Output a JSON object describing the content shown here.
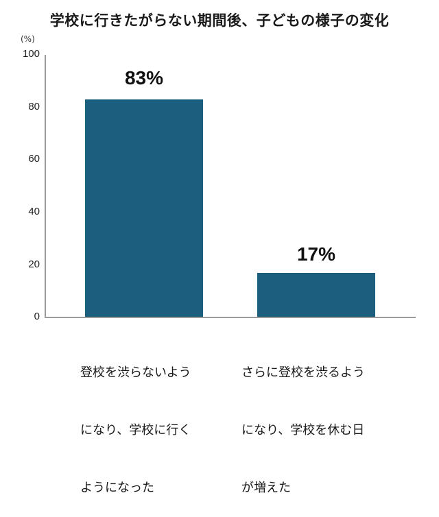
{
  "chart_data": {
    "type": "bar",
    "title": "学校に行きたがらない期間後、子どもの様子の変化",
    "ylabel": "(%)",
    "xlabel": "",
    "ylim": [
      0,
      100
    ],
    "yticks": [
      "100",
      "80",
      "60",
      "40",
      "20",
      "0"
    ],
    "categories": [
      "登校を渋らないようになり、学校に行くようになった",
      "さらに登校を渋るようになり、学校を休む日が増えた"
    ],
    "category_lines": [
      [
        "登校を渋らないよう",
        "になり、学校に行く",
        "ようになった"
      ],
      [
        "さらに登校を渋るよう",
        "になり、学校を休む日",
        "が増えた"
      ]
    ],
    "values": [
      83,
      17
    ],
    "data_labels": [
      "83%",
      "17%"
    ],
    "bar_color": "#1b5e7e",
    "grid": false,
    "legend": null
  }
}
